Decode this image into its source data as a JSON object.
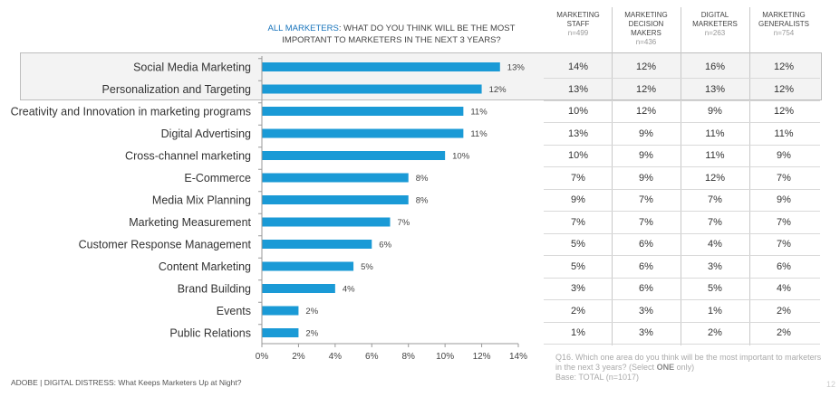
{
  "title": {
    "lead": "ALL MARKETERS",
    "rest": ": WHAT DO YOU THINK WILL BE THE MOST IMPORTANT TO MARKETERS IN THE NEXT 3 YEARS?"
  },
  "table": {
    "columns": [
      {
        "lines": [
          "MARKETING",
          "STAFF"
        ],
        "n": "n=499"
      },
      {
        "lines": [
          "MARKETING",
          "DECISION",
          "MAKERS"
        ],
        "n": "n=436"
      },
      {
        "lines": [
          "DIGITAL",
          "MARKETERS"
        ],
        "n": "n=263"
      },
      {
        "lines": [
          "MARKETING",
          "GENERALISTS"
        ],
        "n": "n=754"
      }
    ],
    "rows": [
      [
        "14%",
        "12%",
        "16%",
        "12%"
      ],
      [
        "13%",
        "12%",
        "13%",
        "12%"
      ],
      [
        "10%",
        "12%",
        "9%",
        "12%"
      ],
      [
        "13%",
        "9%",
        "11%",
        "11%"
      ],
      [
        "10%",
        "9%",
        "11%",
        "9%"
      ],
      [
        "7%",
        "9%",
        "12%",
        "7%"
      ],
      [
        "9%",
        "7%",
        "7%",
        "9%"
      ],
      [
        "7%",
        "7%",
        "7%",
        "7%"
      ],
      [
        "5%",
        "6%",
        "4%",
        "7%"
      ],
      [
        "5%",
        "6%",
        "3%",
        "6%"
      ],
      [
        "3%",
        "6%",
        "5%",
        "4%"
      ],
      [
        "2%",
        "3%",
        "1%",
        "2%"
      ],
      [
        "1%",
        "3%",
        "2%",
        "2%"
      ]
    ]
  },
  "question": {
    "before": "Q16. Which one area do you think will be the most important to marketers in the next 3 years? (Select ",
    "bold": "ONE",
    "after": " only)",
    "base": "Base: TOTAL (n=1017)"
  },
  "footer": "ADOBE | DIGITAL DISTRESS: What Keeps Marketers Up at Night?",
  "page_number": "12",
  "colors": {
    "bar": "#1a9ad6",
    "title_accent": "#1a75bc",
    "highlight": "#f3f3f3"
  },
  "chart_data": {
    "type": "bar",
    "orientation": "horizontal",
    "title": "ALL MARKETERS: WHAT DO YOU THINK WILL BE THE MOST IMPORTANT TO MARKETERS IN THE NEXT 3 YEARS?",
    "categories": [
      "Social Media Marketing",
      "Personalization and Targeting",
      "Creativity and Innovation in marketing programs",
      "Digital Advertising",
      "Cross-channel marketing",
      "E-Commerce",
      "Media Mix Planning",
      "Marketing Measurement",
      "Customer Response Management",
      "Content Marketing",
      "Brand Building",
      "Events",
      "Public Relations"
    ],
    "values": [
      13,
      12,
      11,
      11,
      10,
      8,
      8,
      7,
      6,
      5,
      4,
      2,
      2
    ],
    "value_labels": [
      "13%",
      "12%",
      "11%",
      "11%",
      "10%",
      "8%",
      "8%",
      "7%",
      "6%",
      "5%",
      "4%",
      "2%",
      "2%"
    ],
    "xlim": [
      0,
      14
    ],
    "xticks": [
      "0%",
      "2%",
      "4%",
      "6%",
      "8%",
      "10%",
      "12%",
      "14%"
    ],
    "grid": false,
    "highlighted_rows": [
      0,
      1
    ]
  }
}
